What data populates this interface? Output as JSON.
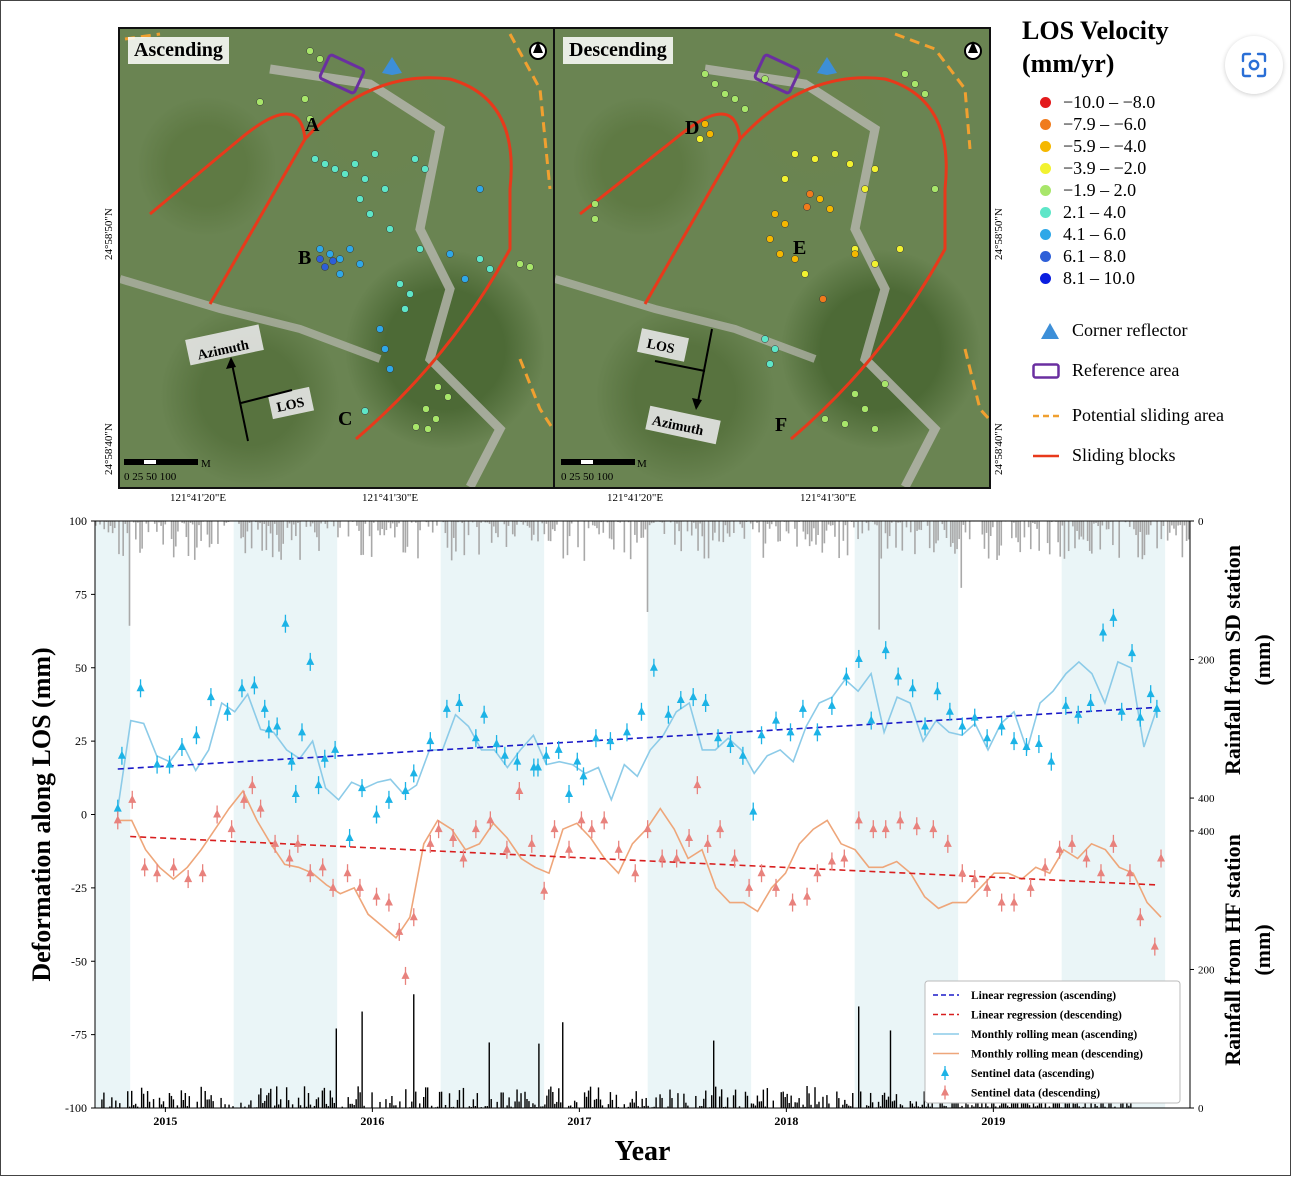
{
  "maps": {
    "ascending_label": "Ascending",
    "descending_label": "Descending",
    "lat_top": "24°58'50\"N",
    "lat_bottom": "24°58'40\"N",
    "lon_left": "121°41'20\"E",
    "lon_right": "121°41'30\"E",
    "scale_text": "0  25  50      100",
    "scale_unit": "M",
    "azimuth": "Azimuth",
    "los": "LOS",
    "points": {
      "A": "A",
      "B": "B",
      "C": "C",
      "D": "D",
      "E": "E",
      "F": "F"
    }
  },
  "legend": {
    "title_line1": "LOS Velocity",
    "title_line2": "(mm/yr)",
    "classes": [
      {
        "label": "−10.0 – −8.0",
        "color": "#e31a1c"
      },
      {
        "label": "−7.9 – −6.0",
        "color": "#f07b1c"
      },
      {
        "label": "−5.9 – −4.0",
        "color": "#f5b800"
      },
      {
        "label": "−3.9 – −2.0",
        "color": "#f2f230"
      },
      {
        "label": "−1.9 – 2.0",
        "color": "#a8e66a"
      },
      {
        "label": "2.1 – 4.0",
        "color": "#5ee6c8"
      },
      {
        "label": "4.1 – 6.0",
        "color": "#2fa8e8"
      },
      {
        "label": "6.1 – 8.0",
        "color": "#2e5fd8"
      },
      {
        "label": "8.1 – 10.0",
        "color": "#0a1ee0"
      }
    ],
    "corner_reflector": "Corner reflector",
    "reference_area": "Reference area",
    "potential_sliding": "Potential sliding area",
    "sliding_blocks": "Sliding blocks"
  },
  "chart_data": {
    "type": "scatter",
    "xlabel": "Year",
    "ylabel": "Deformation along LOS (mm)",
    "ylabel_right_top": "Rainfall from SD station (mm)",
    "ylabel_right_bottom": "Rainfall from HF station (mm)",
    "xticks": [
      "2015",
      "2016",
      "2017",
      "2018",
      "2019"
    ],
    "yticks": [
      100,
      75,
      50,
      25,
      0,
      -25,
      -50,
      -75,
      -100
    ],
    "ylim": [
      -100,
      100
    ],
    "xlim": [
      2014.66,
      2019.95
    ],
    "rain_ticks_top": [
      0,
      200,
      400
    ],
    "rain_ticks_bottom": [
      400,
      200,
      0
    ],
    "legend_entries": [
      "Linear regression (ascending)",
      "Linear regression (descending)",
      "Monthly rolling mean (ascending)",
      "Monthly rolling mean (descending)",
      "Sentinel data (ascending)",
      "Sentinel data (descending)"
    ],
    "wet_season_bands": [
      [
        2014.66,
        2014.83
      ],
      [
        2015.33,
        2015.83
      ],
      [
        2016.33,
        2016.83
      ],
      [
        2017.33,
        2017.83
      ],
      [
        2018.33,
        2018.83
      ],
      [
        2019.33,
        2019.83
      ]
    ],
    "series": [
      {
        "name": "Sentinel data (ascending)",
        "color": "#1cb3e6",
        "x": [
          2014.77,
          2014.79,
          2014.88,
          2014.96,
          2015.02,
          2015.08,
          2015.15,
          2015.22,
          2015.3,
          2015.37,
          2015.43,
          2015.48,
          2015.5,
          2015.54,
          2015.58,
          2015.61,
          2015.63,
          2015.66,
          2015.7,
          2015.74,
          2015.77,
          2015.82,
          2015.89,
          2015.95,
          2016.02,
          2016.08,
          2016.16,
          2016.2,
          2016.28,
          2016.36,
          2016.42,
          2016.5,
          2016.54,
          2016.6,
          2016.64,
          2016.7,
          2016.78,
          2016.8,
          2016.84,
          2016.9,
          2016.95,
          2016.99,
          2017.02,
          2017.08,
          2017.15,
          2017.23,
          2017.3,
          2017.36,
          2017.43,
          2017.49,
          2017.55,
          2017.61,
          2017.67,
          2017.73,
          2017.79,
          2017.84,
          2017.88,
          2017.95,
          2018.02,
          2018.08,
          2018.15,
          2018.22,
          2018.29,
          2018.35,
          2018.41,
          2018.48,
          2018.54,
          2018.61,
          2018.67,
          2018.73,
          2018.79,
          2018.85,
          2018.91,
          2018.97,
          2019.04,
          2019.1,
          2019.16,
          2019.22,
          2019.28,
          2019.35,
          2019.41,
          2019.47,
          2019.53,
          2019.58,
          2019.62,
          2019.67,
          2019.71,
          2019.76,
          2019.79
        ],
        "y": [
          2,
          20,
          43,
          17,
          17,
          23,
          27,
          40,
          35,
          43,
          44,
          36,
          29,
          30,
          65,
          18,
          7,
          28,
          52,
          10,
          19,
          22,
          -8,
          9,
          0,
          5,
          8,
          14,
          25,
          36,
          38,
          26,
          34,
          24,
          20,
          18,
          16,
          16,
          20,
          22,
          7,
          18,
          13,
          26,
          25,
          28,
          35,
          50,
          34,
          39,
          40,
          38,
          26,
          24,
          20,
          1,
          27,
          32,
          28,
          36,
          28,
          37,
          47,
          53,
          32,
          56,
          47,
          43,
          30,
          42,
          35,
          30,
          33,
          26,
          30,
          25,
          23,
          24,
          18,
          37,
          34,
          38,
          62,
          67,
          35,
          55,
          33,
          41,
          36
        ],
        "line": [
          2,
          32,
          31,
          20,
          18,
          24,
          15,
          22,
          38,
          35,
          41,
          29,
          28,
          22,
          19,
          25,
          9,
          5,
          11,
          9,
          11,
          12,
          7,
          10,
          22,
          22,
          34,
          30,
          22,
          22,
          16,
          22,
          27,
          17,
          18,
          17,
          14,
          16,
          5,
          17,
          13,
          22,
          27,
          35,
          38,
          22,
          22,
          26,
          22,
          14,
          20,
          22,
          18,
          30,
          38,
          40,
          46,
          42,
          48,
          28,
          40,
          38,
          25,
          32,
          28,
          27,
          31,
          22,
          31,
          35,
          22,
          38,
          42,
          48,
          52,
          48,
          38,
          52,
          50,
          23,
          36
        ],
        "reg": [
          [
            2014.77,
            15.5
          ],
          [
            2019.79,
            36.5
          ]
        ]
      },
      {
        "name": "Sentinel data (descending)",
        "color": "#e8827d",
        "x": [
          2014.77,
          2014.84,
          2014.9,
          2014.96,
          2015.04,
          2015.11,
          2015.18,
          2015.25,
          2015.32,
          2015.38,
          2015.42,
          2015.46,
          2015.53,
          2015.6,
          2015.64,
          2015.7,
          2015.76,
          2015.81,
          2015.88,
          2015.94,
          2016.02,
          2016.08,
          2016.13,
          2016.16,
          2016.2,
          2016.28,
          2016.32,
          2016.39,
          2016.44,
          2016.5,
          2016.57,
          2016.65,
          2016.71,
          2016.77,
          2016.83,
          2016.88,
          2016.95,
          2017.01,
          2017.06,
          2017.12,
          2017.19,
          2017.27,
          2017.33,
          2017.4,
          2017.47,
          2017.53,
          2017.57,
          2017.62,
          2017.68,
          2017.75,
          2017.82,
          2017.88,
          2017.95,
          2018.03,
          2018.1,
          2018.15,
          2018.22,
          2018.28,
          2018.35,
          2018.42,
          2018.48,
          2018.55,
          2018.63,
          2018.71,
          2018.78,
          2018.85,
          2018.91,
          2018.97,
          2019.04,
          2019.1,
          2019.18,
          2019.25,
          2019.32,
          2019.38,
          2019.45,
          2019.52,
          2019.58,
          2019.66,
          2019.71,
          2019.78,
          2019.81
        ],
        "y": [
          -2,
          5,
          -18,
          -20,
          -18,
          -22,
          -20,
          0,
          -5,
          5,
          10,
          2,
          -10,
          -15,
          -10,
          -20,
          -18,
          -25,
          -20,
          -25,
          -28,
          -30,
          -40,
          -55,
          -35,
          -10,
          -5,
          -8,
          -15,
          -5,
          -2,
          -12,
          8,
          -10,
          -26,
          -5,
          -12,
          -2,
          -5,
          -2,
          -12,
          -20,
          -5,
          -15,
          -15,
          -8,
          10,
          -10,
          -5,
          -15,
          -25,
          -20,
          -25,
          -30,
          -28,
          -20,
          -16,
          -15,
          -2,
          -5,
          -5,
          -2,
          -4,
          -5,
          -10,
          -20,
          -22,
          -25,
          -30,
          -30,
          -25,
          -18,
          -12,
          -10,
          -15,
          -20,
          -10,
          -20,
          -35,
          -45,
          -15
        ],
        "line": [
          -2,
          -2,
          -12,
          -18,
          -22,
          -18,
          -12,
          -5,
          2,
          8,
          -2,
          -10,
          -17,
          -18,
          -20,
          -24,
          -27,
          -25,
          -34,
          -38,
          -42,
          -35,
          -10,
          -2,
          -5,
          -12,
          -10,
          -3,
          -8,
          -15,
          -18,
          -20,
          -5,
          -3,
          -8,
          -15,
          -20,
          -10,
          -5,
          2,
          -5,
          -15,
          -12,
          -25,
          -30,
          -30,
          -33,
          -25,
          -20,
          -10,
          -5,
          -2,
          -10,
          -12,
          -18,
          -18,
          -16,
          -20,
          -28,
          -32,
          -30,
          -30,
          -25,
          -20,
          -20,
          -22,
          -18,
          -20,
          -12,
          -15,
          -10,
          -12,
          -18,
          -20,
          -30,
          -35
        ],
        "reg": [
          [
            2014.83,
            -7.5
          ],
          [
            2019.79,
            -24
          ]
        ]
      }
    ]
  }
}
